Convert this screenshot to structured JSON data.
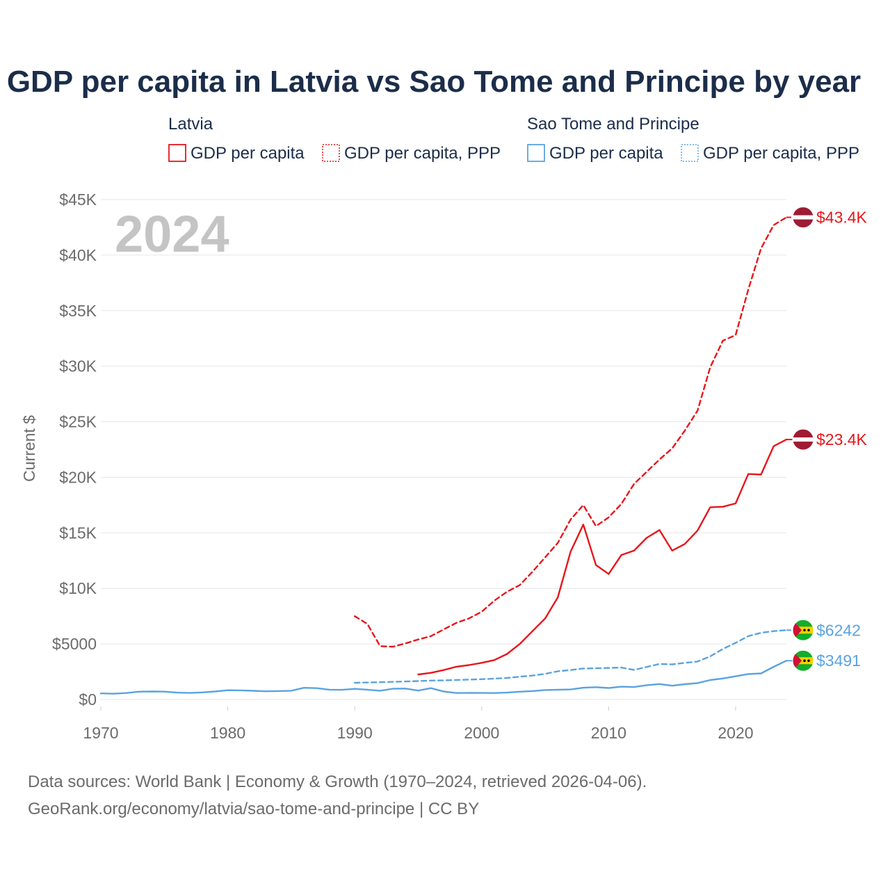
{
  "chart_data": {
    "type": "line",
    "title": "GDP per capita in Latvia vs Sao Tome and Principe by year",
    "ylabel": "Current $",
    "xlabel": "",
    "xlim": [
      1970,
      2024
    ],
    "ylim": [
      0,
      45000
    ],
    "year_watermark": "2024",
    "y_ticks": [
      {
        "value": 0,
        "label": "$0"
      },
      {
        "value": 5000,
        "label": "$5000"
      },
      {
        "value": 10000,
        "label": "$10K"
      },
      {
        "value": 15000,
        "label": "$15K"
      },
      {
        "value": 20000,
        "label": "$20K"
      },
      {
        "value": 25000,
        "label": "$25K"
      },
      {
        "value": 30000,
        "label": "$30K"
      },
      {
        "value": 35000,
        "label": "$35K"
      },
      {
        "value": 40000,
        "label": "$40K"
      },
      {
        "value": 45000,
        "label": "$45K"
      }
    ],
    "x_ticks": [
      {
        "value": 1970,
        "label": "1970"
      },
      {
        "value": 1980,
        "label": "1980"
      },
      {
        "value": 1990,
        "label": "1990"
      },
      {
        "value": 2000,
        "label": "2000"
      },
      {
        "value": 2010,
        "label": "2010"
      },
      {
        "value": 2020,
        "label": "2020"
      }
    ],
    "legend": [
      {
        "group": "Latvia",
        "items": [
          {
            "label": "GDP per capita",
            "color": "#e8161b",
            "style": "solid"
          },
          {
            "label": "GDP per capita, PPP",
            "color": "#e8161b",
            "style": "dotted"
          }
        ]
      },
      {
        "group": "Sao Tome and Principe",
        "items": [
          {
            "label": "GDP per capita",
            "color": "#5aa3e0",
            "style": "solid"
          },
          {
            "label": "GDP per capita, PPP",
            "color": "#5aa3e0",
            "style": "dotted"
          }
        ]
      }
    ],
    "series": [
      {
        "name": "Latvia GDP per capita",
        "color": "#e8161b",
        "dashed": false,
        "flag": "latvia",
        "end_label": "$23.4K",
        "x": [
          1995,
          1996,
          1997,
          1998,
          1999,
          2000,
          2001,
          2002,
          2003,
          2004,
          2005,
          2006,
          2007,
          2008,
          2009,
          2010,
          2011,
          2012,
          2013,
          2014,
          2015,
          2016,
          2017,
          2018,
          2019,
          2020,
          2021,
          2022,
          2023,
          2024
        ],
        "y": [
          2250,
          2400,
          2650,
          2950,
          3100,
          3300,
          3550,
          4100,
          5000,
          6150,
          7300,
          9200,
          13300,
          15750,
          12100,
          11300,
          13000,
          13400,
          14550,
          15250,
          13400,
          14000,
          15200,
          17300,
          17350,
          17650,
          20300,
          20250,
          22800,
          23400
        ]
      },
      {
        "name": "Latvia GDP per capita, PPP",
        "color": "#e8161b",
        "dashed": true,
        "flag": "latvia",
        "end_label": "$43.4K",
        "x": [
          1990,
          1991,
          1992,
          1993,
          1994,
          1995,
          1996,
          1997,
          1998,
          1999,
          2000,
          2001,
          2002,
          2003,
          2004,
          2005,
          2006,
          2007,
          2008,
          2009,
          2010,
          2011,
          2012,
          2013,
          2014,
          2015,
          2016,
          2017,
          2018,
          2019,
          2020,
          2021,
          2022,
          2023,
          2024
        ],
        "y": [
          7500,
          6800,
          4800,
          4750,
          5050,
          5400,
          5700,
          6300,
          6900,
          7300,
          7900,
          8900,
          9700,
          10300,
          11500,
          12800,
          14100,
          16200,
          17500,
          15600,
          16400,
          17600,
          19400,
          20500,
          21600,
          22600,
          24200,
          26000,
          29900,
          32300,
          32800,
          36900,
          40600,
          42700,
          43400
        ]
      },
      {
        "name": "Sao Tome and Principe GDP per capita",
        "color": "#5aa3e0",
        "dashed": false,
        "flag": "stp",
        "end_label": "$3491",
        "x": [
          1970,
          1971,
          1972,
          1973,
          1974,
          1975,
          1976,
          1977,
          1978,
          1979,
          1980,
          1981,
          1982,
          1983,
          1984,
          1985,
          1986,
          1987,
          1988,
          1989,
          1990,
          1991,
          1992,
          1993,
          1994,
          1995,
          1996,
          1997,
          1998,
          1999,
          2000,
          2001,
          2002,
          2003,
          2004,
          2005,
          2006,
          2007,
          2008,
          2009,
          2010,
          2011,
          2012,
          2013,
          2014,
          2015,
          2016,
          2017,
          2018,
          2019,
          2020,
          2021,
          2022,
          2023,
          2024
        ],
        "y": [
          550,
          520,
          580,
          700,
          720,
          710,
          620,
          590,
          640,
          720,
          830,
          820,
          780,
          740,
          760,
          790,
          1050,
          1020,
          880,
          870,
          960,
          880,
          790,
          970,
          980,
          800,
          1020,
          720,
          580,
          600,
          590,
          580,
          620,
          700,
          760,
          850,
          880,
          900,
          1060,
          1110,
          1030,
          1150,
          1120,
          1290,
          1390,
          1240,
          1380,
          1480,
          1750,
          1890,
          2090,
          2290,
          2350,
          2940,
          3491
        ]
      },
      {
        "name": "Sao Tome and Principe GDP per capita, PPP",
        "color": "#5aa3e0",
        "dashed": true,
        "flag": "stp",
        "end_label": "$6242",
        "x": [
          1990,
          1991,
          1992,
          1993,
          1994,
          1995,
          1996,
          1997,
          1998,
          1999,
          2000,
          2001,
          2002,
          2003,
          2004,
          2005,
          2006,
          2007,
          2008,
          2009,
          2010,
          2011,
          2012,
          2013,
          2014,
          2015,
          2016,
          2017,
          2018,
          2019,
          2020,
          2021,
          2022,
          2023,
          2024
        ],
        "y": [
          1500,
          1530,
          1560,
          1590,
          1620,
          1660,
          1700,
          1720,
          1750,
          1790,
          1830,
          1880,
          1940,
          2050,
          2150,
          2310,
          2540,
          2650,
          2790,
          2810,
          2840,
          2870,
          2660,
          2930,
          3200,
          3160,
          3300,
          3420,
          3880,
          4550,
          5100,
          5700,
          6000,
          6150,
          6242
        ]
      }
    ]
  },
  "source": {
    "line1": "Data sources: World Bank | Economy & Growth (1970–2024, retrieved 2026-04-06).",
    "line2": "GeoRank.org/economy/latvia/sao-tome-and-principe | CC BY"
  }
}
